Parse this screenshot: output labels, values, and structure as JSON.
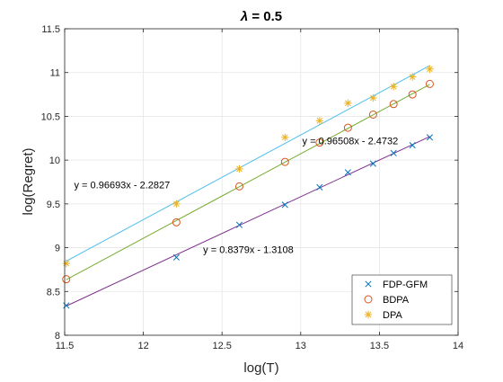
{
  "chart_data": {
    "type": "scatter",
    "title": "λ = 0.5",
    "title_lambda": "λ",
    "title_rest": " = 0.5",
    "xlabel": "log(T)",
    "ylabel": "log(Regret)",
    "xlim": [
      11.5,
      14
    ],
    "ylim": [
      8,
      11.5
    ],
    "xticks": [
      "11.5",
      "12",
      "12.5",
      "13",
      "13.5",
      "14"
    ],
    "yticks": [
      "8",
      "8.5",
      "9",
      "9.5",
      "10",
      "10.5",
      "11",
      "11.5"
    ],
    "grid": true,
    "legend_position": "bottom-right",
    "series": [
      {
        "name": "FDP-GFM",
        "marker": "x",
        "color": "#0072BD",
        "x": [
          11.51,
          12.21,
          12.61,
          12.9,
          13.12,
          13.3,
          13.46,
          13.59,
          13.71,
          13.82
        ],
        "y": [
          8.34,
          8.89,
          9.26,
          9.49,
          9.69,
          9.86,
          9.96,
          10.08,
          10.17,
          10.26
        ]
      },
      {
        "name": "BDPA",
        "marker": "o",
        "color": "#D95319",
        "x": [
          11.51,
          12.21,
          12.61,
          12.9,
          13.12,
          13.3,
          13.46,
          13.59,
          13.71,
          13.82
        ],
        "y": [
          8.64,
          9.29,
          9.7,
          9.98,
          10.2,
          10.37,
          10.52,
          10.64,
          10.75,
          10.87
        ]
      },
      {
        "name": "DPA",
        "marker": "*",
        "color": "#EDB120",
        "x": [
          11.51,
          12.21,
          12.61,
          12.9,
          13.12,
          13.3,
          13.46,
          13.59,
          13.71,
          13.82
        ],
        "y": [
          8.82,
          9.5,
          9.9,
          10.26,
          10.45,
          10.65,
          10.71,
          10.84,
          10.95,
          11.04
        ]
      }
    ],
    "fit_lines": [
      {
        "label": "y = 0.96693x - 2.2827",
        "slope": 0.96693,
        "intercept": -2.2827,
        "color": "#4DBEEE",
        "x_range": [
          11.51,
          13.82
        ],
        "label_at": [
          11.56,
          9.72
        ]
      },
      {
        "label": "y = 0.96508x - 2.4732",
        "slope": 0.96508,
        "intercept": -2.4732,
        "color": "#77AC30",
        "x_range": [
          11.51,
          13.82
        ],
        "label_at": [
          13.01,
          10.22
        ]
      },
      {
        "label": "y = 0.8379x - 1.3108",
        "slope": 0.8379,
        "intercept": -1.3108,
        "color": "#7E2F8E",
        "x_range": [
          11.51,
          13.82
        ],
        "label_at": [
          12.38,
          8.98
        ]
      }
    ]
  }
}
